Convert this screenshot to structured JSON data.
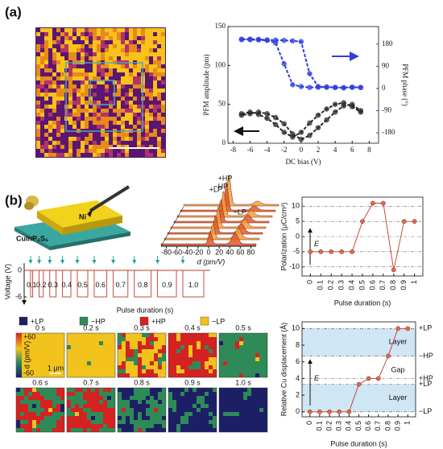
{
  "labels": {
    "a": "(a)",
    "b": "(b)"
  },
  "chart_data": [
    {
      "type": "scatter",
      "x_label": "DC bias (V)",
      "y_label": "PFM amplitude (pm)",
      "y2_label": "PFM phase (°)",
      "xlim": [
        -8.6,
        9.1
      ],
      "xticks": [
        -8,
        -6,
        -4,
        -2,
        0,
        2,
        4,
        6,
        8
      ],
      "ylim": [
        0,
        150
      ],
      "yticks": [
        0,
        50,
        100,
        150
      ],
      "y2lim": [
        -222,
        251
      ],
      "y2ticks": [
        -180,
        -90,
        0,
        90,
        180
      ],
      "series": [
        {
          "color": "#2a2a2a",
          "x": [
            -7,
            -6,
            -5,
            -4,
            -3,
            -2,
            -1,
            0,
            1,
            2,
            3,
            4,
            5,
            6,
            7,
            7,
            6,
            5,
            4,
            3,
            2,
            1,
            0,
            -1,
            -2,
            -3,
            -4,
            -5,
            -6,
            -7
          ],
          "values": [
            38,
            40,
            37,
            32,
            24,
            14,
            8,
            14,
            26,
            36,
            44,
            50,
            52,
            47,
            40,
            42,
            50,
            48,
            40,
            30,
            20,
            10,
            5,
            12,
            25,
            33,
            38,
            40,
            38,
            36
          ]
        },
        {
          "color": "#2f3fe0",
          "axis": "y2",
          "x": [
            -7,
            -6,
            -5,
            -4,
            -3,
            -2,
            -1,
            0,
            1,
            2,
            3,
            4,
            5,
            6,
            7,
            7,
            6,
            5,
            4,
            3,
            2,
            1,
            0,
            -1,
            -2,
            -3,
            -4,
            -5,
            -6,
            -7
          ],
          "values": [
            198,
            200,
            199,
            197,
            196,
            195,
            193,
            190,
            60,
            8,
            5,
            4,
            3,
            5,
            4,
            4,
            5,
            3,
            4,
            6,
            5,
            4,
            8,
            15,
            100,
            185,
            195,
            197,
            198,
            200
          ]
        }
      ]
    },
    {
      "type": "line",
      "x_label": "Pulse duration (s)",
      "y_label": "Polarization (μC/cm²)",
      "annotation": "E",
      "color": "#c0392b",
      "grid": true,
      "xlim": [
        -0.08,
        1.08
      ],
      "x": [
        0,
        0.1,
        0.2,
        0.3,
        0.4,
        0.5,
        0.6,
        0.7,
        0.8,
        0.9,
        1
      ],
      "ylim": [
        -13,
        13
      ],
      "yticks": [
        -10,
        -5,
        0,
        5,
        10
      ],
      "values": [
        -5,
        -5,
        -5,
        -5,
        -5,
        5,
        11,
        11,
        -11,
        5,
        5
      ]
    },
    {
      "type": "line",
      "x_label": "Pulse duration (s)",
      "y_label": "Relative Cu displacement (Å)",
      "annotation": "E",
      "color": "#c0392b",
      "xlim": [
        -0.08,
        1.08
      ],
      "x": [
        0,
        0.1,
        0.2,
        0.3,
        0.4,
        0.5,
        0.6,
        0.7,
        0.8,
        0.9,
        1
      ],
      "ylim": [
        -0.6,
        10.8
      ],
      "yticks": [
        0,
        2,
        4,
        6,
        8,
        10
      ],
      "values": [
        0,
        0,
        0,
        0,
        0,
        3.3,
        4,
        4,
        6.7,
        10,
        10
      ],
      "regions": [
        {
          "label": "Layer",
          "range": [
            6.7,
            10
          ],
          "shaded": true
        },
        {
          "label": "Gap",
          "range": [
            3.3,
            6.7
          ],
          "shaded": false
        },
        {
          "label": "Layer",
          "range": [
            0,
            3.3
          ],
          "shaded": true
        }
      ],
      "states": [
        {
          "label": "+LP",
          "value": 10
        },
        {
          "label": "−HP",
          "value": 6.7
        },
        {
          "label": "+HP",
          "value": 4
        },
        {
          "label": "+LP",
          "value": 3.3
        },
        {
          "label": "−LP",
          "value": 0
        }
      ]
    }
  ],
  "schematic": {
    "top": "Ni",
    "substrate": "CuInP₂S₆"
  },
  "histogram": {
    "x_label": "d (pm/V)",
    "xlim": [
      -90,
      90
    ],
    "xticks": [
      -80,
      -60,
      -40,
      -20,
      0,
      20,
      40,
      60,
      80
    ],
    "peaks": [
      {
        "label": "+LP",
        "value": -8
      },
      {
        "label": "−HP",
        "value": 2
      },
      {
        "label": "+HP",
        "value": 10
      },
      {
        "label": "−LP",
        "value": 50
      }
    ]
  },
  "waveform": {
    "y_label": "Voltage (V)",
    "x_label": "Pulse duration (s)",
    "ylim": [
      -8,
      2
    ],
    "yticks": [
      0,
      -6
    ],
    "pulses": [
      0.1,
      0.2,
      0.3,
      0.4,
      0.5,
      0.6,
      0.7,
      0.8,
      0.9,
      {
        "value": 1,
        "label": "1.0"
      }
    ]
  },
  "legend": [
    {
      "name": "+LP",
      "color": "#1c1f66"
    },
    {
      "name": "−HP",
      "color": "#2e8b57"
    },
    {
      "name": "+HP",
      "color": "#d42222"
    },
    {
      "name": "−LP",
      "color": "#f2c31c"
    }
  ],
  "maps": {
    "frames": [
      "0 s",
      "0.2 s",
      "0.3 s",
      "0.4 s",
      "0.5 s",
      "0.6 s",
      "0.7 s",
      "0.8 s",
      "0.9 s",
      "1.0 s"
    ],
    "colorbar": [
      {
        "value": 60,
        "label": "+60"
      },
      -60
    ],
    "colorbar_label": "d (pm/V)",
    "scale": "1 μm"
  }
}
